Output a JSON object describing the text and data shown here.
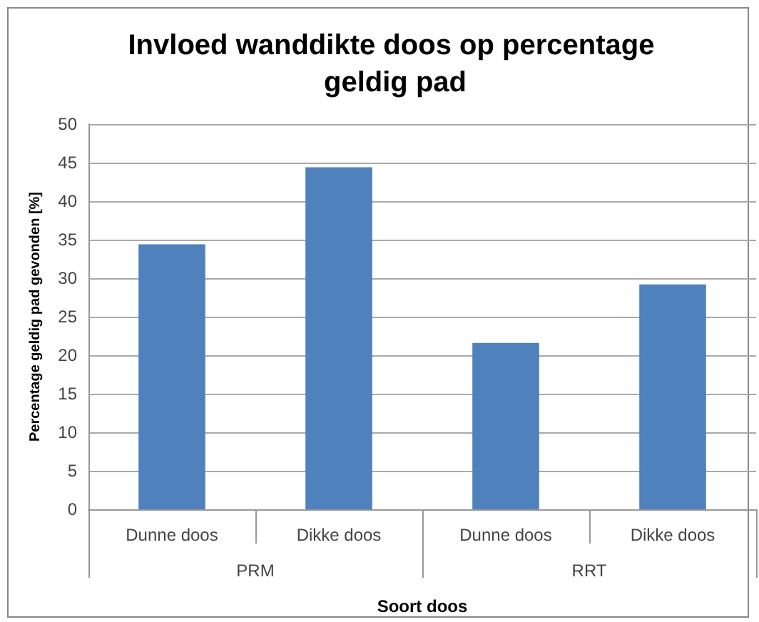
{
  "chart_data": {
    "type": "bar",
    "title": "Invloed wanddikte doos op percentage geldig pad",
    "xlabel": "Soort doos",
    "ylabel": "Percentage geldig pad gevonden [%]",
    "categories": [
      "Dunne doos",
      "Dikke doos",
      "Dunne doos",
      "Dikke doos"
    ],
    "annotations": [
      "PRM",
      "RRT"
    ],
    "values": [
      34.4,
      44.4,
      21.6,
      29.2
    ],
    "color": "#4f81bd",
    "ylim": [
      0,
      50
    ],
    "yticks": [
      0,
      5,
      10,
      15,
      20,
      25,
      30,
      35,
      40,
      45,
      50
    ],
    "grid": true
  }
}
